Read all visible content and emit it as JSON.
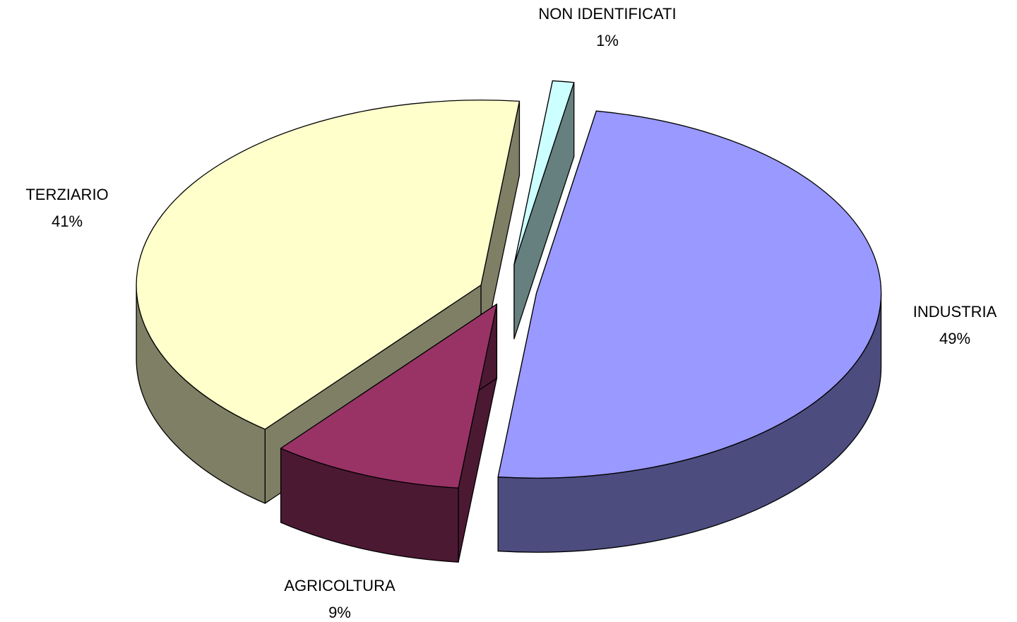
{
  "chart_data": {
    "type": "pie3d",
    "categories": [
      "INDUSTRIA",
      "AGRICOLTURA",
      "TERZIARIO",
      "NON IDENTIFICATI"
    ],
    "values": [
      49,
      9,
      41,
      1
    ],
    "value_labels": [
      "49%",
      "9%",
      "41%",
      "1%"
    ],
    "colors": [
      "#9999ff",
      "#993366",
      "#ffffcc",
      "#ccffff"
    ]
  }
}
